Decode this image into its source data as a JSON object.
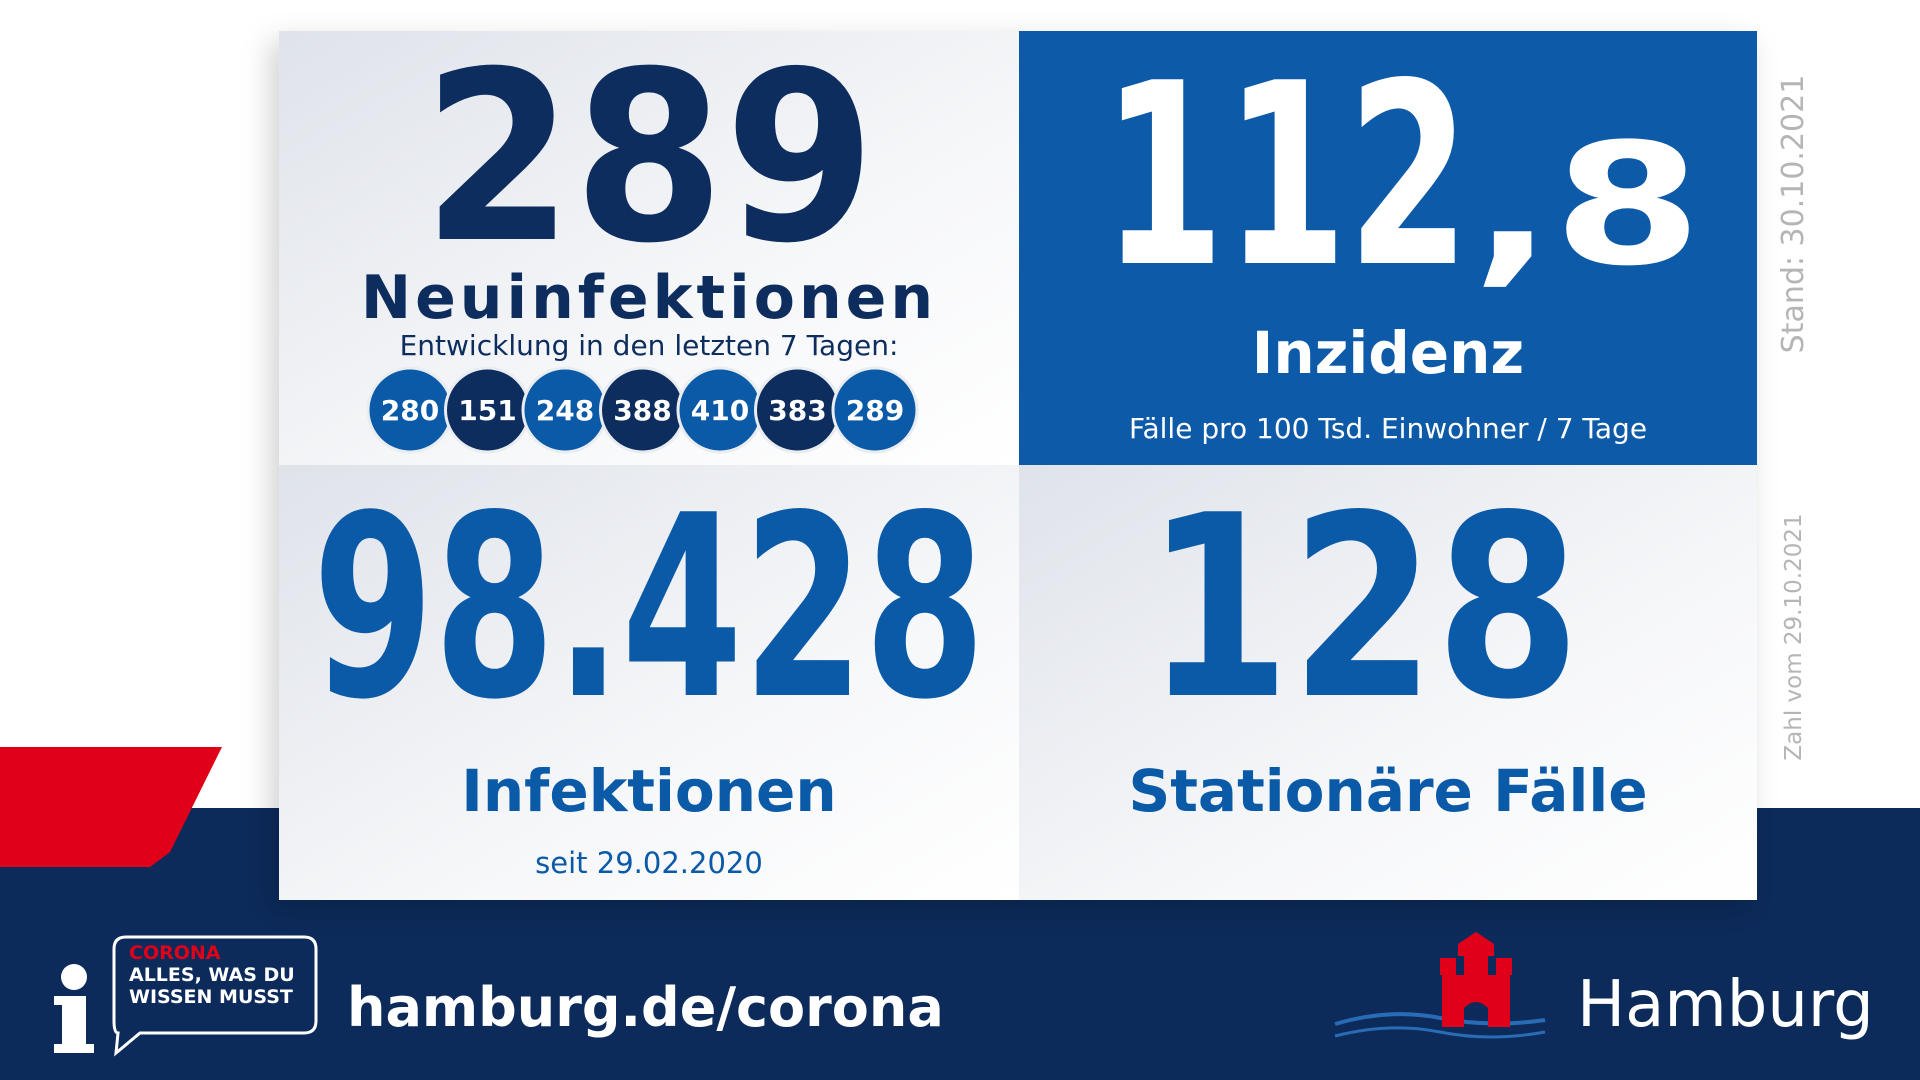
{
  "neuinfektionen": {
    "value": 289,
    "label": "Neuinfektionen",
    "trend_label": "Entwicklung in den letzten 7 Tagen:",
    "trend": [
      280,
      151,
      248,
      388,
      410,
      383,
      289
    ]
  },
  "inzidenz": {
    "integer": "112",
    "decimal": ",8",
    "label": "Inzidenz",
    "subtitle": "Fälle pro 100 Tsd. Einwohner / 7 Tage"
  },
  "infektionen": {
    "value": "98.428",
    "label": "Infektionen",
    "subtitle": "seit 29.02.2020"
  },
  "stationaer": {
    "value": 128,
    "label": "Stationäre Fälle"
  },
  "stand": "Stand: 30.10.2021",
  "zahl_vom": "Zahl vom 29.10.2021",
  "footer": {
    "badge": [
      "CORONA",
      "ALLES, WAS DU",
      "WISSEN MUSST"
    ],
    "url": "hamburg.de/corona",
    "city": "Hamburg"
  }
}
